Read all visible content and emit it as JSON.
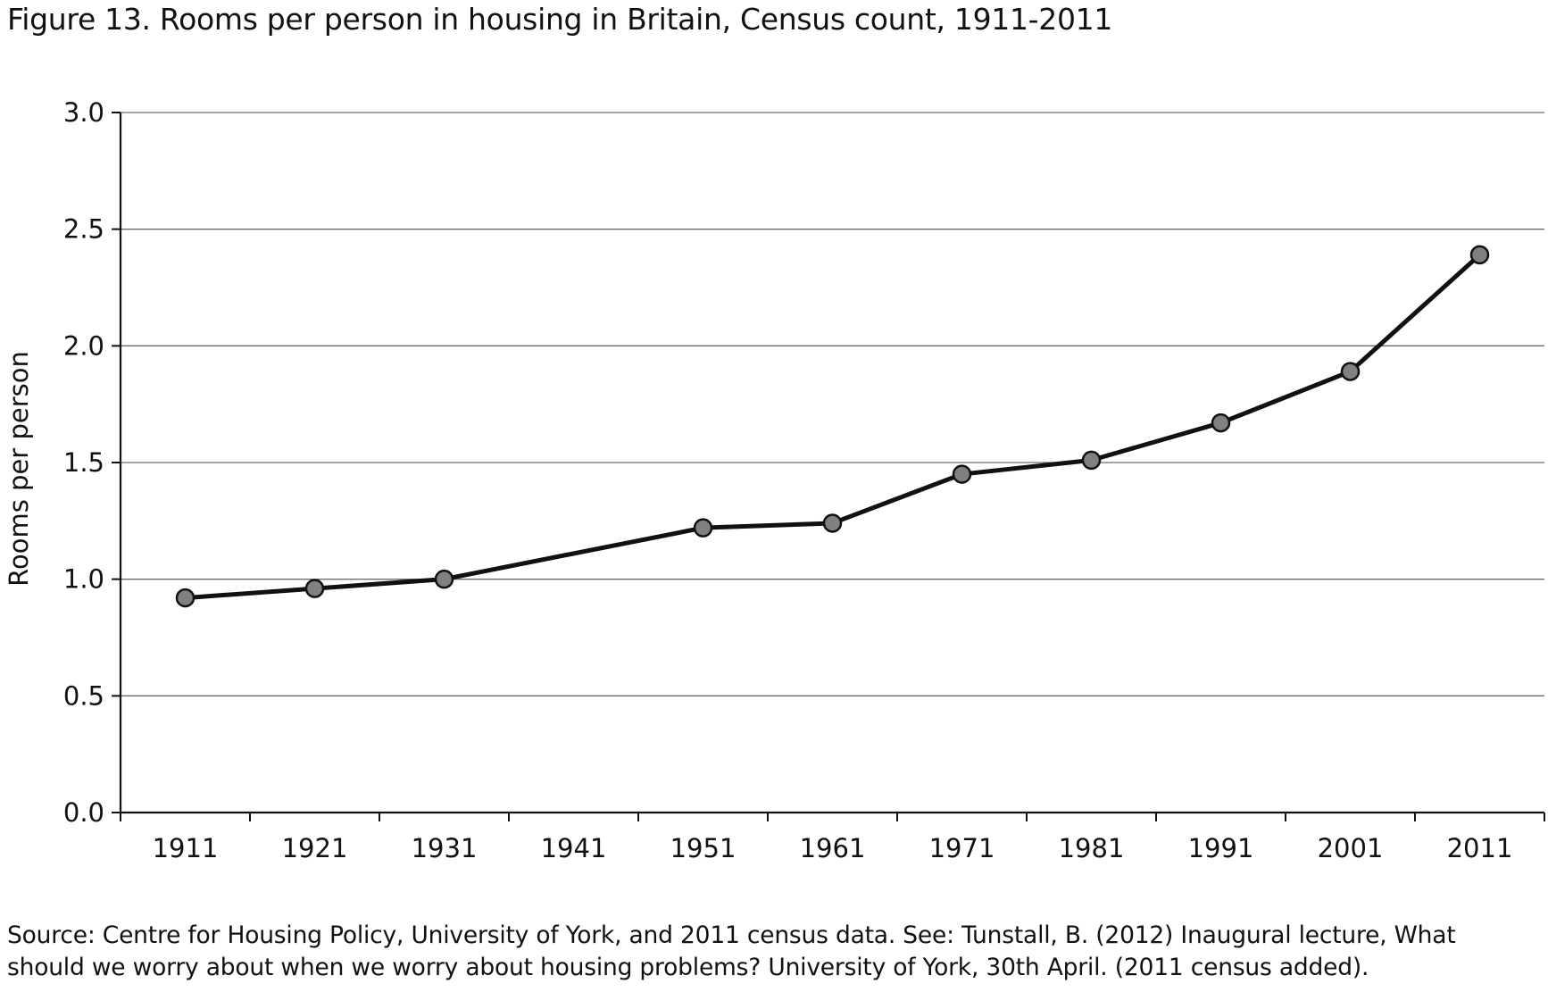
{
  "title": "Figure 13.  Rooms per person in housing in Britain, Census count, 1911-2011",
  "source": "Source: Centre for Housing Policy, University of York, and 2011 census data. See: Tunstall, B. (2012) Inaugural lecture, What should we worry about when we worry about housing problems? University of York, 30th April. (2011 census added).",
  "chart_data": {
    "type": "line",
    "title": "Figure 13.  Rooms per person in housing in Britain, Census count, 1911-2011",
    "xlabel": "",
    "ylabel": "Rooms per person",
    "categories": [
      "1911",
      "1921",
      "1931",
      "1941",
      "1951",
      "1961",
      "1971",
      "1981",
      "1991",
      "2001",
      "2011"
    ],
    "yticks": [
      "0.0",
      "0.5",
      "1.0",
      "1.5",
      "2.0",
      "2.5",
      "3.0"
    ],
    "ylim": [
      0,
      3
    ],
    "grid": true,
    "legend": "none",
    "series": [
      {
        "x": [
          1911,
          1921,
          1931,
          1951,
          1961,
          1971,
          1981,
          1991,
          2001,
          2011
        ],
        "values": [
          0.92,
          0.96,
          1.0,
          1.22,
          1.24,
          1.45,
          1.51,
          1.67,
          1.89,
          2.39
        ]
      }
    ],
    "colors": {
      "line": "#111111",
      "marker_fill": "#808080",
      "marker_stroke": "#111111",
      "grid": "#6e6e6e"
    }
  }
}
